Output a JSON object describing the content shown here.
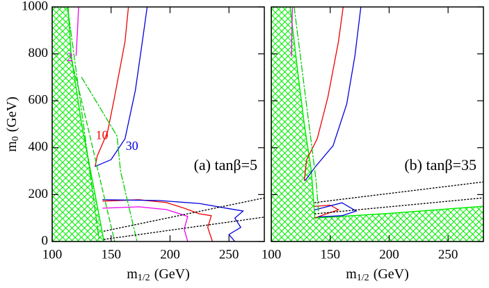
{
  "chart_data": [
    {
      "type": "line",
      "panel_label": "(a) tanβ=5",
      "xlabel": {
        "main": "m",
        "sub": "1/2",
        "unit": "(GeV)"
      },
      "ylabel": {
        "main": "m",
        "sub": "0",
        "unit": "(GeV)"
      },
      "xlim": [
        100,
        280
      ],
      "ylim": [
        0,
        1000
      ],
      "xticks": [
        100,
        150,
        200,
        250
      ],
      "yticks": [
        0,
        200,
        400,
        600,
        800,
        1000
      ],
      "regions": [
        {
          "color": "#00ee00",
          "hatch": true,
          "x": [
            100,
            100,
            113.5,
            116,
            125,
            144
          ],
          "y": [
            0,
            1000,
            1000,
            800,
            500,
            0
          ]
        }
      ],
      "series": [
        {
          "name": "2",
          "color": "#ee00ee",
          "style": "solid",
          "x": [
            122.4,
            121.5,
            120.3
          ],
          "values": [
            1000,
            900,
            793
          ]
        },
        {
          "color": "#ee00ee",
          "style": "solid",
          "x": [
            143,
            173.5,
            197,
            215,
            212,
            215
          ],
          "values": [
            142,
            148,
            136,
            107,
            53,
            0
          ]
        },
        {
          "name": "10",
          "color": "#ee0000",
          "style": "solid",
          "x": [
            164.7,
            161.8,
            152.9,
            147,
            138.2,
            136.5
          ],
          "values": [
            1000,
            852,
            615,
            467,
            364,
            320
          ]
        },
        {
          "color": "#ee0000",
          "style": "solid",
          "x": [
            143,
            173.5,
            197,
            212,
            225,
            235,
            232,
            236
          ],
          "values": [
            172,
            178,
            166,
            142,
            118,
            110,
            60,
            0
          ]
        },
        {
          "name": "30",
          "color": "#0000dd",
          "style": "solid",
          "x": [
            180.6,
            176.5,
            170.6,
            161.8,
            150,
            136.5
          ],
          "values": [
            1000,
            852,
            645,
            438,
            349,
            320
          ]
        },
        {
          "color": "#0000dd",
          "style": "solid",
          "x": [
            143,
            190,
            225,
            250,
            262,
            255,
            260,
            250,
            255
          ],
          "values": [
            178,
            175,
            162,
            140,
            130,
            100,
            60,
            30,
            0
          ]
        },
        {
          "color": "#00cc00",
          "style": "dashdot",
          "x": [
            113,
            140
          ],
          "values": [
            1000,
            0
          ]
        },
        {
          "color": "#00cc00",
          "style": "dashed",
          "x": [
            115,
            125,
            153
          ],
          "values": [
            800,
            600,
            0
          ]
        },
        {
          "color": "#00cc00",
          "style": "dashdot",
          "x": [
            125,
            155,
            158,
            172
          ],
          "values": [
            700,
            450,
            300,
            0
          ]
        },
        {
          "color": "#000000",
          "style": "dotted",
          "x": [
            144,
            280
          ],
          "values": [
            44,
            186
          ]
        },
        {
          "color": "#000000",
          "style": "dotted",
          "x": [
            144,
            280
          ],
          "values": [
            9,
            104
          ]
        }
      ]
    },
    {
      "type": "line",
      "panel_label": "(b) tanβ=35",
      "xlabel": {
        "main": "m",
        "sub": "1/2",
        "unit": "(GeV)"
      },
      "xlim": [
        100,
        280
      ],
      "ylim": [
        0,
        1000
      ],
      "xticks": [
        100,
        150,
        200,
        250
      ],
      "yticks": [
        0,
        200,
        400,
        600,
        800,
        1000
      ],
      "regions": [
        {
          "color": "#00ee00",
          "hatch": true,
          "x": [
            100,
            100,
            116,
            123,
            128,
            134,
            137,
            200,
            280,
            280
          ],
          "y": [
            0,
            1000,
            1000,
            700,
            500,
            300,
            100,
            120,
            150,
            0
          ]
        }
      ],
      "series": [
        {
          "color": "#ee00ee",
          "style": "solid",
          "x": [
            117.9,
            117.1
          ],
          "values": [
            1000,
            790
          ]
        },
        {
          "color": "#ee0000",
          "style": "solid",
          "x": [
            161,
            157,
            148,
            139,
            130,
            128
          ],
          "values": [
            1000,
            852,
            615,
            438,
            349,
            260
          ]
        },
        {
          "color": "#ee0000",
          "style": "solid",
          "x": [
            137,
            150,
            157,
            145,
            137
          ],
          "values": [
            150,
            155,
            135,
            115,
            100
          ]
        },
        {
          "color": "#0000dd",
          "style": "solid",
          "x": [
            176,
            171,
            164,
            152.4,
            137.6,
            128.8
          ],
          "values": [
            1000,
            793,
            586,
            408,
            320,
            260
          ]
        },
        {
          "color": "#0000dd",
          "style": "solid",
          "x": [
            137,
            160,
            172,
            160,
            140
          ],
          "values": [
            135,
            165,
            130,
            110,
            105
          ]
        },
        {
          "color": "#00cc00",
          "style": "dashdot",
          "x": [
            119.4,
            138,
            140
          ],
          "values": [
            1000,
            260,
            130
          ]
        },
        {
          "color": "#000000",
          "style": "dotted",
          "x": [
            137,
            280
          ],
          "values": [
            166,
            254
          ]
        },
        {
          "color": "#000000",
          "style": "dotted",
          "x": [
            137,
            280
          ],
          "values": [
            118,
            186
          ]
        }
      ]
    }
  ]
}
